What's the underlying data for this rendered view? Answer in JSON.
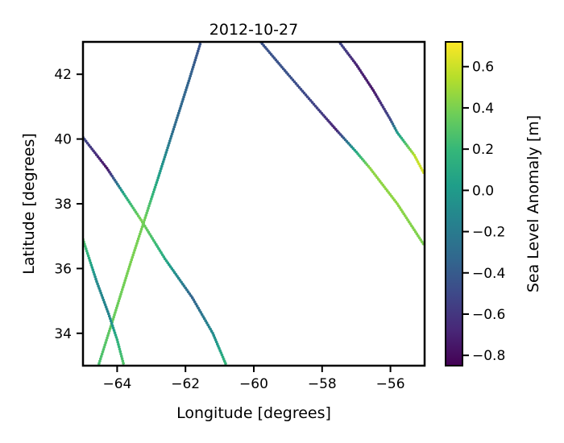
{
  "chart_data": {
    "type": "scatter",
    "title": "2012-10-27",
    "xlabel": "Longitude [degrees]",
    "ylabel": "Latitude [degrees]",
    "xlim": [
      -65,
      -55
    ],
    "ylim": [
      33,
      43
    ],
    "xticks": [
      -64,
      -62,
      -60,
      -58,
      -56
    ],
    "xtick_labels": [
      "−64",
      "−62",
      "−60",
      "−58",
      "−56"
    ],
    "yticks": [
      34,
      36,
      38,
      40,
      42
    ],
    "ytick_labels": [
      "34",
      "36",
      "38",
      "40",
      "42"
    ],
    "grid": false,
    "colorbar": {
      "label": "Sea Level Anomaly [m]",
      "colormap": "viridis",
      "range": [
        -0.85,
        0.72
      ],
      "ticks": [
        -0.8,
        -0.6,
        -0.4,
        -0.2,
        0.0,
        0.2,
        0.4,
        0.6
      ],
      "tick_labels": [
        "−0.8",
        "−0.6",
        "−0.4",
        "−0.2",
        "0.0",
        "0.2",
        "0.4",
        "0.6"
      ]
    },
    "colormap_stops": [
      "#440154",
      "#482878",
      "#3e4989",
      "#31688e",
      "#26828e",
      "#1f9e89",
      "#35b779",
      "#6ece58",
      "#b5de2b",
      "#fde725"
    ],
    "tracks": [
      {
        "points": [
          {
            "lon": -64.55,
            "lat": 33.0,
            "sla": 0.25
          },
          {
            "lon": -64.1,
            "lat": 34.5,
            "sla": 0.35
          },
          {
            "lon": -63.6,
            "lat": 36.2,
            "sla": 0.4
          },
          {
            "lon": -63.2,
            "lat": 37.5,
            "sla": 0.38
          },
          {
            "lon": -62.8,
            "lat": 38.8,
            "sla": 0.05
          },
          {
            "lon": -62.35,
            "lat": 40.3,
            "sla": -0.3
          },
          {
            "lon": -61.9,
            "lat": 41.8,
            "sla": -0.35
          },
          {
            "lon": -61.55,
            "lat": 43.0,
            "sla": -0.45
          }
        ]
      },
      {
        "points": [
          {
            "lon": -65.0,
            "lat": 40.05,
            "sla": -0.5
          },
          {
            "lon": -64.3,
            "lat": 39.1,
            "sla": -0.78
          },
          {
            "lon": -63.8,
            "lat": 38.3,
            "sla": 0.1
          },
          {
            "lon": -63.3,
            "lat": 37.5,
            "sla": 0.4
          },
          {
            "lon": -62.6,
            "lat": 36.3,
            "sla": 0.1
          },
          {
            "lon": -61.8,
            "lat": 35.1,
            "sla": -0.35
          },
          {
            "lon": -61.2,
            "lat": 34.0,
            "sla": -0.1
          },
          {
            "lon": -60.8,
            "lat": 33.0,
            "sla": 0.2
          }
        ]
      },
      {
        "points": [
          {
            "lon": -65.0,
            "lat": 36.9,
            "sla": 0.3
          },
          {
            "lon": -64.6,
            "lat": 35.6,
            "sla": -0.1
          },
          {
            "lon": -64.25,
            "lat": 34.6,
            "sla": -0.15
          },
          {
            "lon": -64.0,
            "lat": 33.8,
            "sla": 0.15
          },
          {
            "lon": -63.8,
            "lat": 33.0,
            "sla": 0.3
          }
        ]
      },
      {
        "points": [
          {
            "lon": -59.8,
            "lat": 43.0,
            "sla": -0.45
          },
          {
            "lon": -59.0,
            "lat": 42.0,
            "sla": -0.45
          },
          {
            "lon": -58.1,
            "lat": 40.9,
            "sla": -0.55
          },
          {
            "lon": -57.6,
            "lat": 40.3,
            "sla": -0.7
          },
          {
            "lon": -57.0,
            "lat": 39.6,
            "sla": 0.1
          },
          {
            "lon": -56.6,
            "lat": 39.1,
            "sla": 0.45
          },
          {
            "lon": -55.8,
            "lat": 38.0,
            "sla": 0.45
          },
          {
            "lon": -55.0,
            "lat": 36.7,
            "sla": 0.4
          }
        ]
      },
      {
        "points": [
          {
            "lon": -57.5,
            "lat": 43.0,
            "sla": -0.5
          },
          {
            "lon": -57.0,
            "lat": 42.3,
            "sla": -0.7
          },
          {
            "lon": -56.5,
            "lat": 41.5,
            "sla": -0.75
          },
          {
            "lon": -56.0,
            "lat": 40.6,
            "sla": -0.5
          },
          {
            "lon": -55.8,
            "lat": 40.2,
            "sla": 0.0
          },
          {
            "lon": -55.3,
            "lat": 39.5,
            "sla": 0.55
          },
          {
            "lon": -55.0,
            "lat": 38.9,
            "sla": 0.65
          }
        ]
      }
    ]
  }
}
